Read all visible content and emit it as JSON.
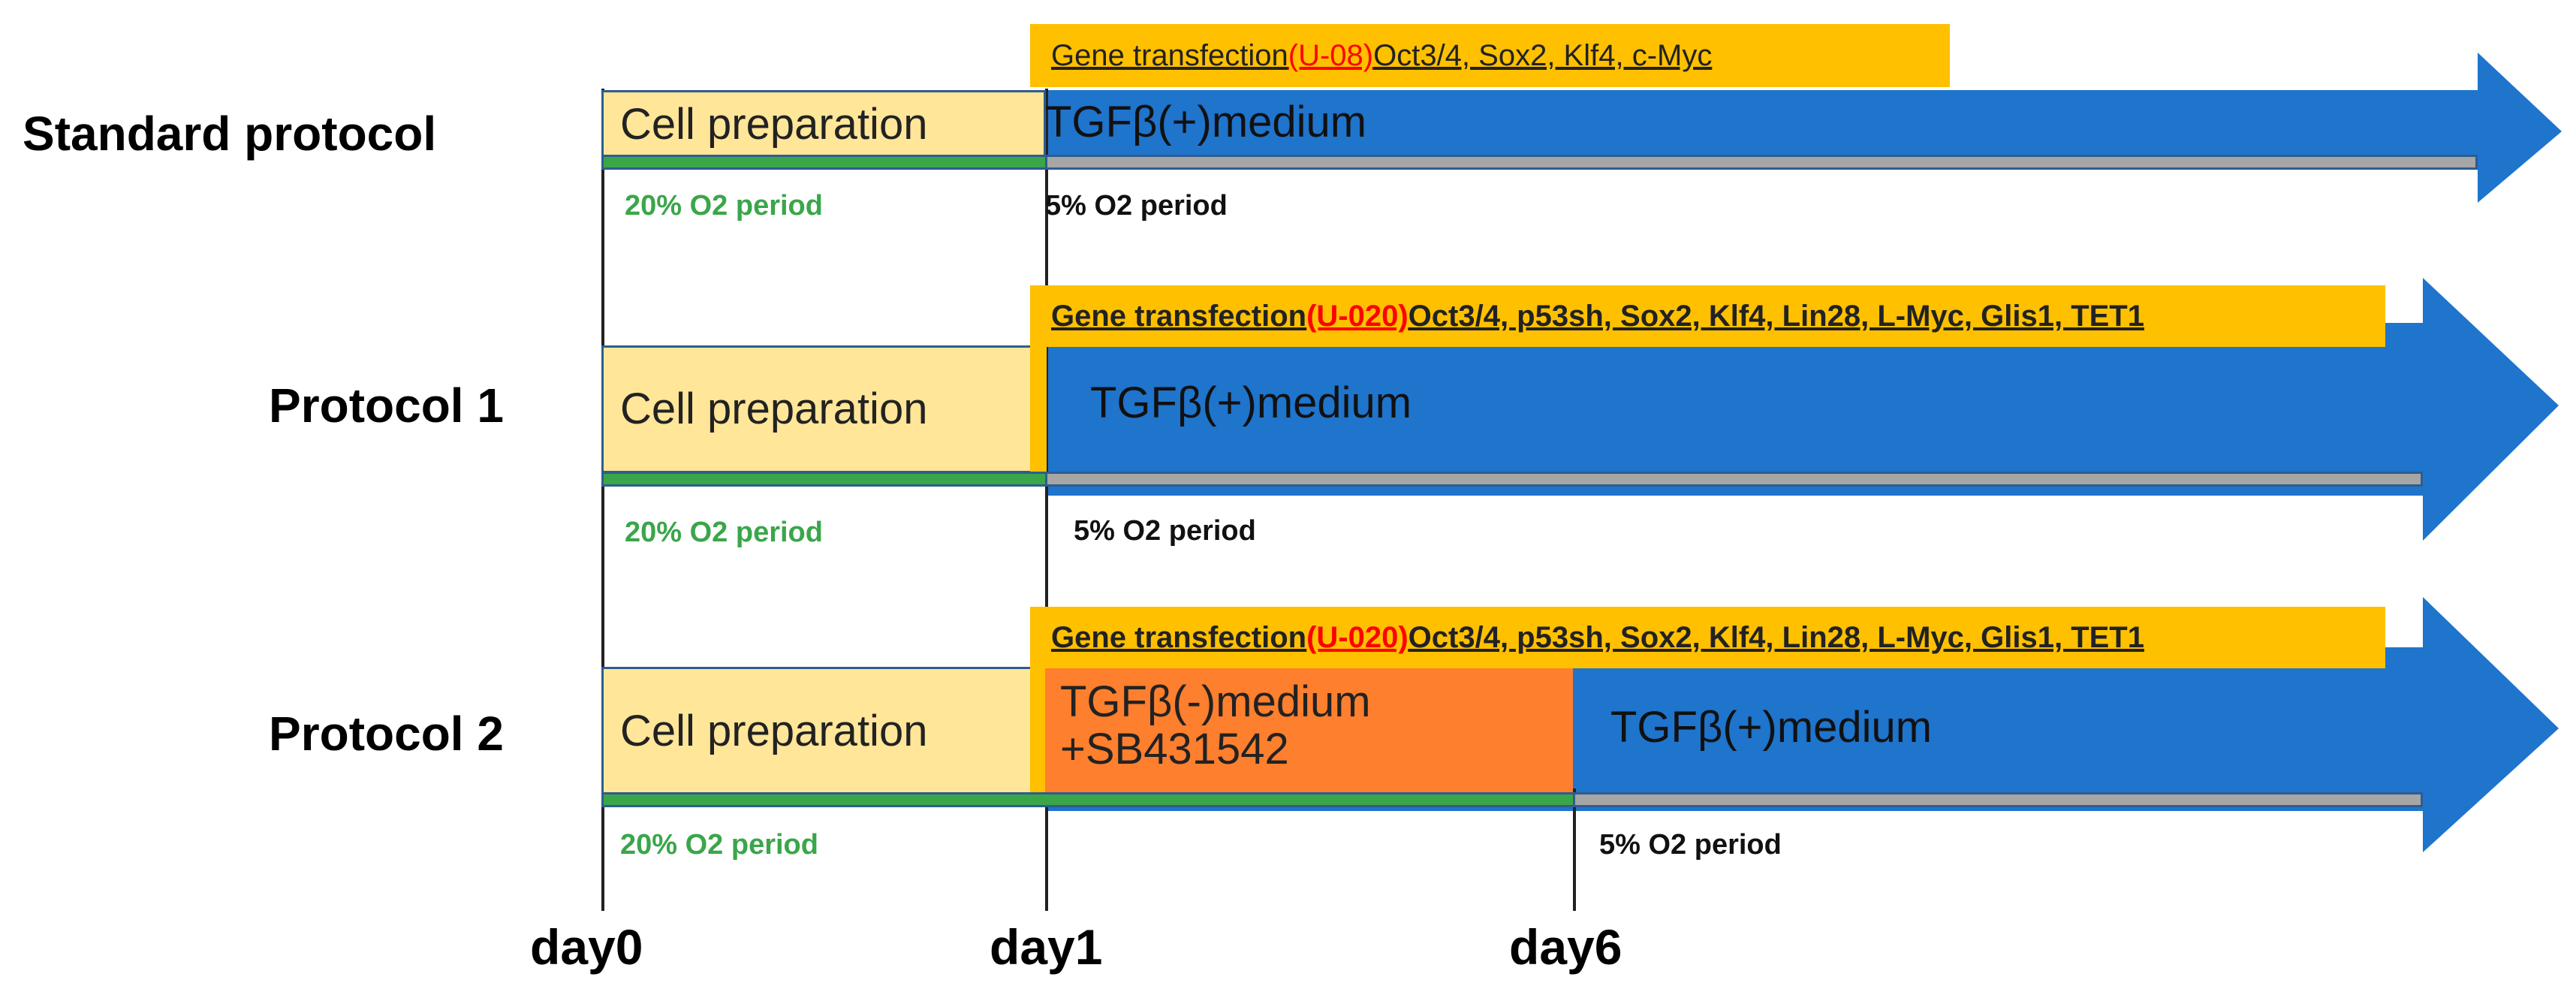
{
  "rows": [
    {
      "label": "Standard protocol",
      "cell_preparation": "Cell preparation",
      "gene_prefix": "Gene transfection",
      "gene_code": "(U-08)",
      "gene_list": " Oct3/4, Sox2, Klf4, c-Myc",
      "medium": "TGFβ(+)medium",
      "o2_low": "20% O2 period",
      "o2_high": "5% O2 period"
    },
    {
      "label": "Protocol 1",
      "cell_preparation": "Cell preparation",
      "gene_prefix": "Gene transfection",
      "gene_code": "(U-020)",
      "gene_list": " Oct3/4, p53sh, Sox2, Klf4, Lin28, L-Myc, Glis1, TET1",
      "medium": "TGFβ(+)medium",
      "o2_low": "20% O2 period",
      "o2_high": "5% O2 period"
    },
    {
      "label": "Protocol 2",
      "cell_preparation": "Cell preparation",
      "gene_prefix": "Gene transfection",
      "gene_code": "(U-020)",
      "gene_list": " Oct3/4, p53sh, Sox2, Klf4, Lin28, L-Myc, Glis1, TET1",
      "medium_minus_line1": "TGFβ(-)medium",
      "medium_minus_line2": "+SB431542",
      "medium": "TGFβ(+)medium",
      "o2_low": "20% O2 period",
      "o2_high": "5% O2 period"
    }
  ],
  "days": [
    "day0",
    "day1",
    "day6"
  ],
  "colors": {
    "cell_preparation": "#ffe699",
    "gene_box": "#ffc000",
    "arrow": "#1f74cc",
    "orange_medium": "#fe7f2d",
    "o2_green": "#3aa64a",
    "o2_gray": "#a6a6a6",
    "code_red": "#ff0000"
  }
}
